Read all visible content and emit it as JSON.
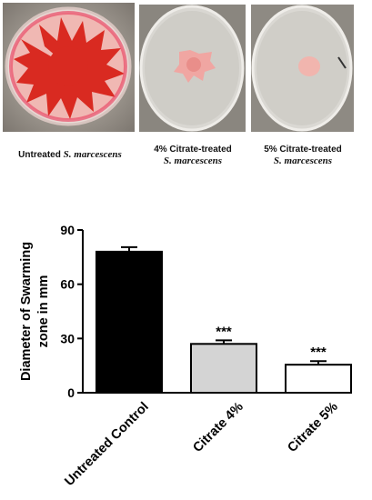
{
  "photos": [
    {
      "caption_prefix": "Untreated",
      "caption_species": "S. marcescens"
    },
    {
      "caption_prefix": "4% Citrate-treated",
      "caption_species": "S. marcescens"
    },
    {
      "caption_prefix": "5% Citrate-treated",
      "caption_species": "S. marcescens"
    }
  ],
  "chart_data": {
    "type": "bar",
    "categories": [
      "Untreated Control",
      "Citrate 4%",
      "Citrate 5%"
    ],
    "values": [
      78,
      27,
      15.5
    ],
    "errors": [
      2.5,
      2.0,
      2.0
    ],
    "bar_colors": [
      "#000000",
      "#d4d4d4",
      "#ffffff"
    ],
    "annotations": [
      "",
      "***",
      "***"
    ],
    "ylabel_line1": "Diameter of Swarming",
    "ylabel_line2": "zone in mm",
    "xlabel": "",
    "yticks": [
      0,
      30,
      60,
      90
    ],
    "ylim": [
      0,
      90
    ],
    "grid": false
  }
}
